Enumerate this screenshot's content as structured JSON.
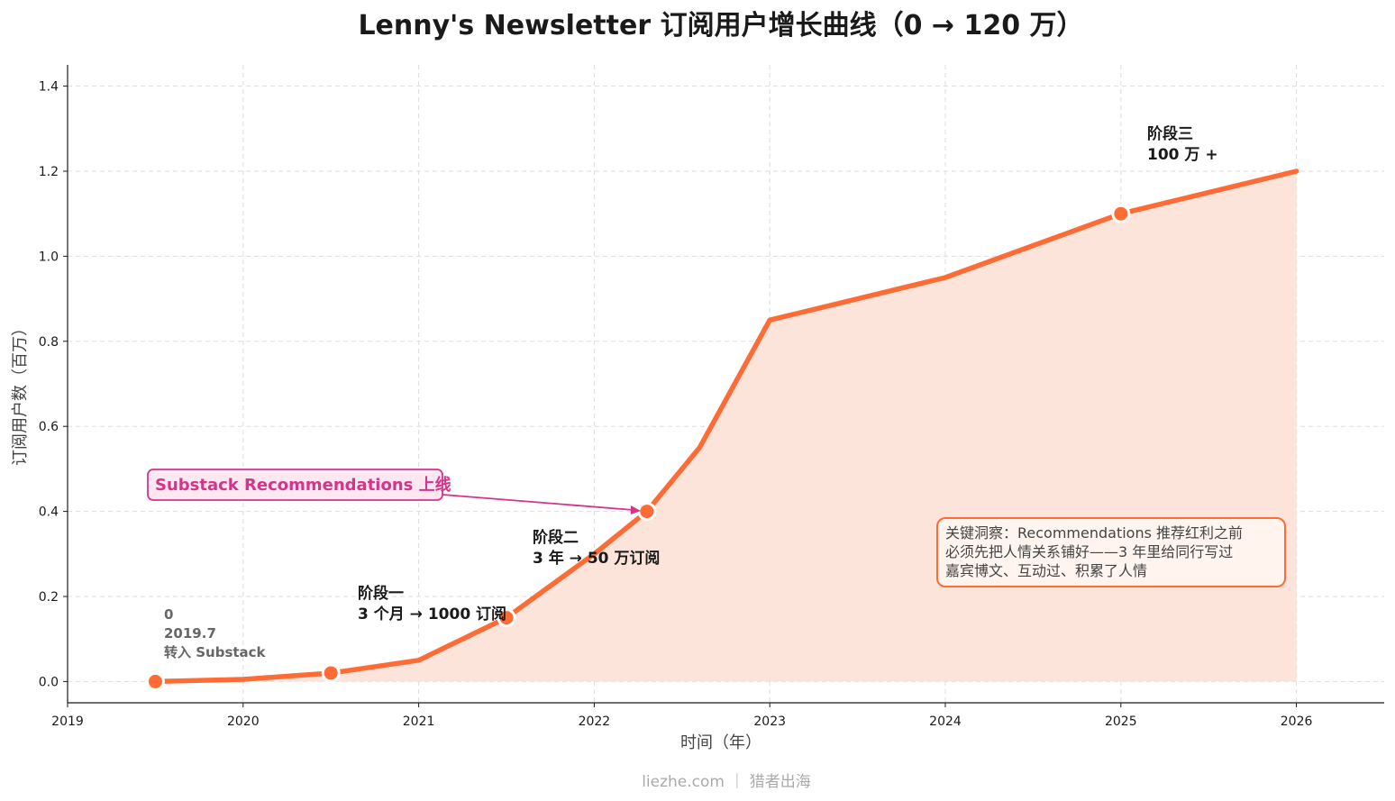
{
  "chart_data": {
    "type": "area",
    "title": "Lenny's Newsletter 订阅用户增长曲线（0 → 120 万）",
    "xlabel": "时间（年）",
    "ylabel": "订阅用户数（百万）",
    "xlim": [
      2019,
      2026.5
    ],
    "ylim": [
      -0.05,
      1.45
    ],
    "x_ticks": [
      2019,
      2020,
      2021,
      2022,
      2023,
      2024,
      2025,
      2026
    ],
    "y_ticks": [
      0.0,
      0.2,
      0.4,
      0.6,
      0.8,
      1.0,
      1.2,
      1.4
    ],
    "grid": true,
    "series": [
      {
        "x": [
          2019.5,
          2020.0,
          2020.5,
          2021.0,
          2021.5,
          2022.0,
          2022.3,
          2022.6,
          2023.0,
          2024.0,
          2025.0,
          2026.0
        ],
        "y": [
          0.0,
          0.005,
          0.02,
          0.05,
          0.15,
          0.3,
          0.4,
          0.55,
          0.85,
          0.95,
          1.1,
          1.2
        ]
      }
    ],
    "markers": [
      {
        "x": 2019.5,
        "y": 0.0
      },
      {
        "x": 2020.5,
        "y": 0.02
      },
      {
        "x": 2021.5,
        "y": 0.15
      },
      {
        "x": 2022.3,
        "y": 0.4
      },
      {
        "x": 2025.0,
        "y": 1.1
      }
    ],
    "annotations": {
      "start": [
        "0",
        "2019.7",
        "转入 Substack"
      ],
      "phase1": [
        "阶段一",
        "3 个月 → 1000 订阅"
      ],
      "phase2": [
        "阶段二",
        "3 年 → 50 万订阅"
      ],
      "phase3": [
        "阶段三",
        "100 万 +"
      ],
      "recommendations": "Substack Recommendations 上线",
      "insight": [
        "关键洞察：Recommendations 推荐红利之前",
        "必须先把人情关系铺好——3 年里给同行写过",
        "嘉宾博文、互动过、积累了人情"
      ]
    },
    "colors": {
      "line": "#ff6b35",
      "fill": "#fde4da",
      "callout": "#d6338a",
      "callout_bg": "#fde8f2",
      "insight_border": "#ff6b35",
      "insight_bg": "#fff4ee"
    }
  },
  "footer": "liezhe.com ｜ 猎者出海"
}
